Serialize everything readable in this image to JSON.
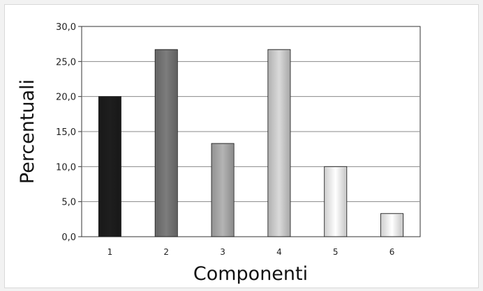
{
  "chart_data": {
    "type": "bar",
    "title": "",
    "xlabel": "Componenti",
    "ylabel": "Percentuali",
    "categories": [
      "1",
      "2",
      "3",
      "4",
      "5",
      "6"
    ],
    "values": [
      20.0,
      26.7,
      13.3,
      26.7,
      10.0,
      3.3
    ],
    "ylim": [
      0,
      30
    ],
    "yticks": [
      "0,0",
      "5,0",
      "10,0",
      "15,0",
      "20,0",
      "25,0",
      "30,0"
    ],
    "grid": true,
    "legend": "none",
    "bar_colors": [
      "#1e1e1e",
      "#7c7c7c",
      "#b4b4b4",
      "#dadada",
      "#ffffff",
      "#ffffff"
    ]
  }
}
